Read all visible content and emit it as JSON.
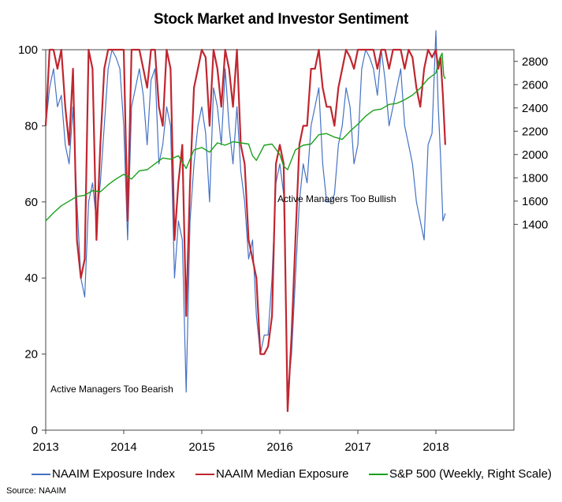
{
  "chart_data": {
    "type": "line",
    "title": "Stock Market and Investor Sentiment",
    "x_ticks": [
      "2013",
      "2014",
      "2015",
      "2016",
      "2017",
      "2018"
    ],
    "xlim": [
      2013.0,
      2019.0
    ],
    "left_axis": {
      "ticks": [
        "0",
        "20",
        "40",
        "60",
        "80",
        "100"
      ],
      "ylim": [
        0,
        100
      ]
    },
    "right_axis": {
      "ticks": [
        "1400",
        "1600",
        "1800",
        "2000",
        "2200",
        "2400",
        "2600",
        "2800"
      ],
      "ylim": [
        -367,
        2900
      ]
    },
    "annotations": [
      {
        "text": "Active Managers Too Bullish"
      },
      {
        "text": "Active Managers Too Bearish"
      }
    ],
    "source": "Source: NAAIM",
    "series": [
      {
        "name": "NAAIM Exposure Index",
        "color": "#4472c4",
        "axis": "left",
        "x": [
          2013.0,
          2013.05,
          2013.1,
          2013.15,
          2013.2,
          2013.25,
          2013.3,
          2013.35,
          2013.4,
          2013.45,
          2013.5,
          2013.55,
          2013.6,
          2013.65,
          2013.7,
          2013.75,
          2013.8,
          2013.85,
          2013.9,
          2013.95,
          2014.0,
          2014.05,
          2014.1,
          2014.15,
          2014.2,
          2014.25,
          2014.3,
          2014.35,
          2014.4,
          2014.45,
          2014.5,
          2014.55,
          2014.6,
          2014.65,
          2014.7,
          2014.75,
          2014.8,
          2014.85,
          2014.9,
          2014.95,
          2015.0,
          2015.05,
          2015.1,
          2015.15,
          2015.2,
          2015.25,
          2015.3,
          2015.35,
          2015.4,
          2015.45,
          2015.5,
          2015.55,
          2015.6,
          2015.65,
          2015.7,
          2015.75,
          2015.8,
          2015.85,
          2015.9,
          2015.95,
          2016.0,
          2016.05,
          2016.1,
          2016.15,
          2016.2,
          2016.25,
          2016.3,
          2016.35,
          2016.4,
          2016.45,
          2016.5,
          2016.55,
          2016.6,
          2016.65,
          2016.7,
          2016.75,
          2016.8,
          2016.85,
          2016.9,
          2016.95,
          2017.0,
          2017.05,
          2017.1,
          2017.15,
          2017.2,
          2017.25,
          2017.3,
          2017.35,
          2017.4,
          2017.45,
          2017.5,
          2017.55,
          2017.6,
          2017.65,
          2017.7,
          2017.75,
          2017.8,
          2017.85,
          2017.9,
          2017.95,
          2018.0,
          2018.03,
          2018.06,
          2018.09,
          2018.12
        ],
        "values": [
          80,
          90,
          95,
          85,
          88,
          75,
          70,
          85,
          60,
          40,
          35,
          60,
          65,
          55,
          65,
          80,
          95,
          100,
          98,
          95,
          80,
          50,
          85,
          90,
          95,
          88,
          75,
          92,
          95,
          70,
          75,
          85,
          80,
          40,
          55,
          50,
          10,
          55,
          70,
          80,
          85,
          78,
          60,
          90,
          85,
          75,
          95,
          80,
          70,
          85,
          68,
          60,
          45,
          50,
          30,
          20,
          25,
          25,
          40,
          65,
          70,
          62,
          10,
          20,
          40,
          60,
          70,
          65,
          80,
          85,
          90,
          70,
          60,
          60,
          62,
          75,
          80,
          90,
          85,
          70,
          75,
          95,
          100,
          98,
          95,
          88,
          100,
          92,
          80,
          85,
          90,
          95,
          80,
          75,
          70,
          60,
          55,
          50,
          75,
          78,
          105,
          85,
          72,
          55,
          57
        ]
      },
      {
        "name": "NAAIM Median Exposure",
        "color": "#c0262f",
        "axis": "left",
        "x": [
          2013.0,
          2013.05,
          2013.1,
          2013.15,
          2013.2,
          2013.25,
          2013.3,
          2013.35,
          2013.4,
          2013.45,
          2013.5,
          2013.55,
          2013.6,
          2013.65,
          2013.7,
          2013.75,
          2013.8,
          2013.85,
          2013.9,
          2013.95,
          2014.0,
          2014.05,
          2014.1,
          2014.15,
          2014.2,
          2014.25,
          2014.3,
          2014.35,
          2014.4,
          2014.45,
          2014.5,
          2014.55,
          2014.6,
          2014.65,
          2014.7,
          2014.75,
          2014.8,
          2014.85,
          2014.9,
          2014.95,
          2015.0,
          2015.05,
          2015.1,
          2015.15,
          2015.2,
          2015.25,
          2015.3,
          2015.35,
          2015.4,
          2015.45,
          2015.5,
          2015.55,
          2015.6,
          2015.65,
          2015.7,
          2015.75,
          2015.8,
          2015.85,
          2015.9,
          2015.95,
          2016.0,
          2016.05,
          2016.1,
          2016.15,
          2016.2,
          2016.25,
          2016.3,
          2016.35,
          2016.4,
          2016.45,
          2016.5,
          2016.55,
          2016.6,
          2016.65,
          2016.7,
          2016.75,
          2016.8,
          2016.85,
          2016.9,
          2016.95,
          2017.0,
          2017.05,
          2017.1,
          2017.15,
          2017.2,
          2017.25,
          2017.3,
          2017.35,
          2017.4,
          2017.45,
          2017.5,
          2017.55,
          2017.6,
          2017.65,
          2017.7,
          2017.75,
          2017.8,
          2017.85,
          2017.9,
          2017.95,
          2018.0,
          2018.03,
          2018.06,
          2018.09,
          2018.12
        ],
        "values": [
          80,
          100,
          100,
          95,
          100,
          85,
          75,
          95,
          50,
          40,
          45,
          100,
          95,
          50,
          75,
          95,
          100,
          100,
          100,
          100,
          100,
          55,
          100,
          100,
          100,
          95,
          90,
          100,
          100,
          85,
          80,
          100,
          95,
          50,
          65,
          75,
          30,
          65,
          90,
          95,
          100,
          98,
          80,
          100,
          95,
          85,
          100,
          95,
          85,
          100,
          75,
          70,
          50,
          45,
          40,
          20,
          20,
          22,
          30,
          70,
          75,
          70,
          5,
          25,
          50,
          75,
          80,
          80,
          95,
          95,
          100,
          90,
          85,
          85,
          80,
          90,
          95,
          100,
          98,
          95,
          100,
          100,
          100,
          100,
          100,
          95,
          100,
          100,
          95,
          100,
          100,
          100,
          95,
          100,
          98,
          90,
          85,
          95,
          100,
          98,
          100,
          95,
          98,
          88,
          75
        ]
      },
      {
        "name": "S&P 500 (Weekly, Right Scale)",
        "color": "#1aa01a",
        "axis": "right",
        "x": [
          2013.0,
          2013.1,
          2013.2,
          2013.3,
          2013.4,
          2013.5,
          2013.6,
          2013.7,
          2013.8,
          2013.9,
          2014.0,
          2014.1,
          2014.2,
          2014.3,
          2014.4,
          2014.5,
          2014.6,
          2014.7,
          2014.8,
          2014.9,
          2015.0,
          2015.1,
          2015.2,
          2015.3,
          2015.4,
          2015.5,
          2015.6,
          2015.65,
          2015.7,
          2015.8,
          2015.9,
          2016.0,
          2016.05,
          2016.1,
          2016.2,
          2016.3,
          2016.4,
          2016.5,
          2016.6,
          2016.7,
          2016.8,
          2016.9,
          2017.0,
          2017.1,
          2017.2,
          2017.3,
          2017.4,
          2017.5,
          2017.6,
          2017.7,
          2017.8,
          2017.9,
          2018.0,
          2018.05,
          2018.08,
          2018.1,
          2018.12
        ],
        "values": [
          1430,
          1500,
          1560,
          1600,
          1640,
          1650,
          1690,
          1680,
          1740,
          1790,
          1830,
          1790,
          1860,
          1870,
          1920,
          1970,
          1960,
          1990,
          1880,
          2040,
          2060,
          2020,
          2100,
          2080,
          2110,
          2100,
          2090,
          1990,
          1950,
          2080,
          2090,
          2000,
          1900,
          1870,
          2040,
          2080,
          2090,
          2170,
          2180,
          2150,
          2130,
          2200,
          2260,
          2330,
          2380,
          2390,
          2430,
          2440,
          2470,
          2510,
          2570,
          2650,
          2700,
          2830,
          2870,
          2680,
          2650
        ]
      }
    ]
  }
}
